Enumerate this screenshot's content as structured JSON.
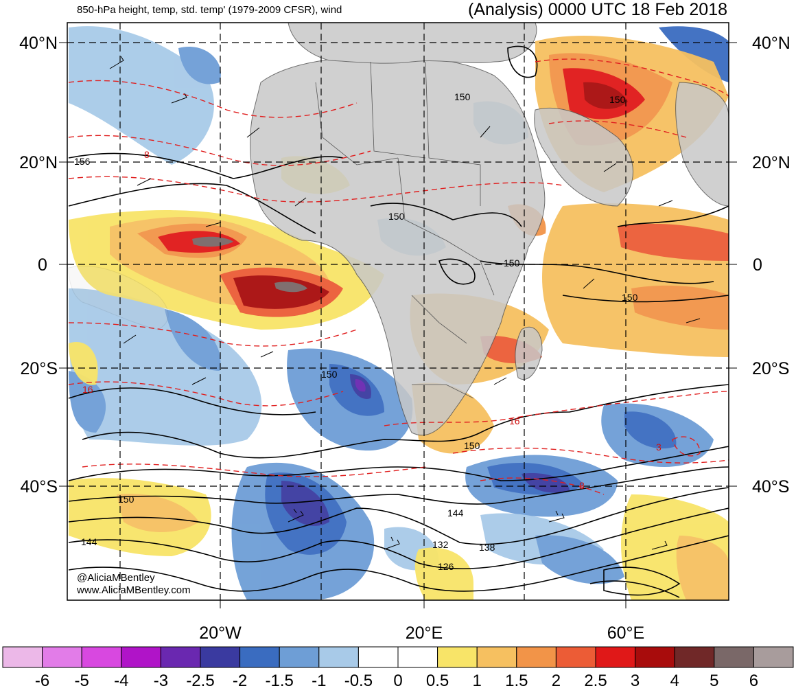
{
  "header": {
    "left_title": "850-hPa height, temp, std. temp' (1979-2009 CFSR), wind",
    "right_title": "(Analysis) 0000 UTC 18 Feb 2018"
  },
  "map": {
    "region": "Africa and surrounding Atlantic / Indian Ocean",
    "lat_labels": [
      "40°N",
      "20°N",
      "0",
      "20°S",
      "40°S"
    ],
    "lat_values": [
      40,
      20,
      0,
      -20,
      -40
    ],
    "lon_labels": [
      "20°W",
      "20°E",
      "60°E"
    ],
    "lon_values": [
      -20,
      20,
      60
    ],
    "height_contour_labels": [
      "156",
      "150",
      "150",
      "150",
      "150",
      "150",
      "150",
      "150",
      "150",
      "144",
      "144",
      "138",
      "132",
      "126"
    ],
    "temperature_contour_labels": [
      "8",
      "16",
      "16",
      "8",
      "3"
    ],
    "credits": [
      "@AliciaMBentley",
      "www.AliciaMBentley.com"
    ]
  },
  "colorbar": {
    "labels": [
      "-6",
      "-5",
      "-4",
      "-3",
      "-2.5",
      "-2",
      "-1.5",
      "-1",
      "-0.5",
      "0",
      "0.5",
      "1",
      "1.5",
      "2",
      "2.5",
      "3",
      "4",
      "5",
      "6"
    ],
    "colors": [
      "#ecb8e8",
      "#e27ce8",
      "#d848e0",
      "#b014c8",
      "#6a28b0",
      "#3a3aa0",
      "#3a6cc0",
      "#6e9ed6",
      "#a8cae8",
      "#ffffff",
      "#ffffff",
      "#f8e468",
      "#f6c060",
      "#f29448",
      "#ec5c36",
      "#e01818",
      "#a80c0c",
      "#702828",
      "#7a6868",
      "#a89c9c"
    ]
  },
  "colors": {
    "land": "#c8c8c8",
    "height_contour": "#000000",
    "temp_contour": "#e02020"
  }
}
